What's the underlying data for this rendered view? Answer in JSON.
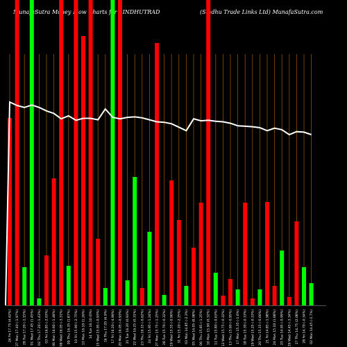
{
  "chart_data": {
    "type": "bar",
    "title_left": "MunafaSutra  Money  Flow  Charts for SINDHUTRAD",
    "title_right": "(Sindhu  Trade  Links Ltd) MunafaSutra.com",
    "categories": [
      "24-02-2023",
      "27-02-2023",
      "28-02-2023",
      "01-03-2023",
      "02-03-2023",
      "03-03-2023",
      "06-03-2023",
      "08-03-2023",
      "09-03-2023",
      "10-03-2023",
      "13-03-2023",
      "14-03-2023",
      "15-03-2023",
      "16-03-2023",
      "17-03-2023",
      "20-03-2023",
      "21-03-2023",
      "22-03-2023",
      "23-03-2023",
      "24-03-2023",
      "27-03-2023",
      "28-03-2023",
      "29-03-2023",
      "31-03-2023",
      "03-04-2023",
      "05-04-2023",
      "06-04-2023",
      "10-04-2023",
      "11-04-2023",
      "12-04-2023",
      "13-04-2023",
      "17-04-2023",
      "18-04-2023",
      "19-04-2023",
      "20-04-2023",
      "21-04-2023",
      "24-04-2023",
      "25-04-2023",
      "26-04-2023",
      "27-04-2023",
      "28-04-2023",
      "02-05-2023"
    ],
    "x_tick_labels": [
      "24 Fri 17.75 (4.42%)",
      "27 Mon 17.40 (-1.97%)",
      "28 Tue 17.20 (-1.15%)",
      "01 Wed 17.45 (1.45%)",
      "02 Thu 17.20 (-1.43%)",
      "03 Fri 16.85 (-2.03%)",
      "06 Mon 16.60 (-1.48%)",
      "08 Wed 16.05 (-3.31%)",
      "09 Thu 16.35 (1.87%)",
      "10 Fri 15.90 (-2.75%)",
      "13 Mon 16.10 (1.26%)",
      "14 Tue 16.10 (0%)",
      "15 Wed 15.95 (-0.93%)",
      "16 Thu 17.05 (6.9%)",
      "17 Fri 16.20 (-4.99%)",
      "20 Mon 16.05 (-0.93%)",
      "21 Tue 16.20 (0.93%)",
      "22 Wed 16.25 (0.31%)",
      "23 Thu 16.15 (-0.62%)",
      "24 Fri 15.95 (-1.24%)",
      "27 Mon 15.75 (-1.25%)",
      "28 Tue 15.70 (-0.32%)",
      "29 Wed 15.55 (-0.96%)",
      "31 Fri 15.20 (-2.25%)",
      "03 Mon 14.85 (-2.3%)",
      "05 Wed 16.05 (8.08%)",
      "06 Thu 15.85 (-1.25%)",
      "10 Mon 15.90 (0.32%)",
      "11 Tue 15.80 (-0.63%)",
      "12 Wed 15.75 (-0.32%)",
      "13 Thu 15.60 (-0.95%)",
      "17 Mon 15.35 (-1.6%)",
      "18 Tue 15.30 (-0.33%)",
      "19 Wed 15.25 (-0.33%)",
      "20 Thu 15.15 (-0.66%)",
      "21 Fri 14.85 (-1.98%)",
      "24 Mon 15.10 (1.68%)",
      "25 Tue 14.95 (-0.99%)",
      "26 Wed 14.45 (-3.34%)",
      "27 Thu 14.75 (2.08%)",
      "28 Fri 14.70 (-0.34%)",
      "02 Mon 14.45 (-1.7%)"
    ],
    "flow_direction": [
      "negative",
      "negative",
      "positive",
      "positive",
      "positive",
      "negative",
      "negative",
      "negative",
      "positive",
      "negative",
      "negative",
      "negative",
      "negative",
      "positive",
      "positive",
      "negative",
      "positive",
      "positive",
      "negative",
      "positive",
      "negative",
      "positive",
      "negative",
      "negative",
      "positive",
      "negative",
      "negative",
      "negative",
      "positive",
      "negative",
      "negative",
      "positive",
      "negative",
      "negative",
      "positive",
      "negative",
      "negative",
      "positive",
      "negative",
      "negative",
      "positive",
      "positive"
    ],
    "money_flow": [
      270,
      440,
      55,
      440,
      10,
      72,
      183,
      440,
      57,
      440,
      388,
      440,
      96,
      25,
      440,
      440,
      36,
      185,
      25,
      106,
      378,
      15,
      180,
      123,
      28,
      83,
      148,
      440,
      47,
      14,
      38,
      23,
      148,
      10,
      23,
      149,
      28,
      79,
      12,
      121,
      55,
      32
    ],
    "price_line": [
      17.75,
      17.4,
      17.2,
      17.45,
      17.2,
      16.85,
      16.6,
      16.05,
      16.35,
      15.9,
      16.1,
      16.1,
      15.95,
      17.05,
      16.2,
      16.05,
      16.2,
      16.25,
      16.15,
      15.95,
      15.75,
      15.7,
      15.55,
      15.2,
      14.85,
      16.05,
      15.85,
      15.9,
      15.8,
      15.75,
      15.6,
      15.35,
      15.3,
      15.25,
      15.15,
      14.85,
      15.1,
      14.95,
      14.45,
      14.75,
      14.7,
      14.45
    ],
    "colors": {
      "positive": "#00ff00",
      "negative": "#ff0000",
      "line": "#ffffff",
      "grid": "#8a5300",
      "background": "#000000"
    },
    "grid": true
  }
}
